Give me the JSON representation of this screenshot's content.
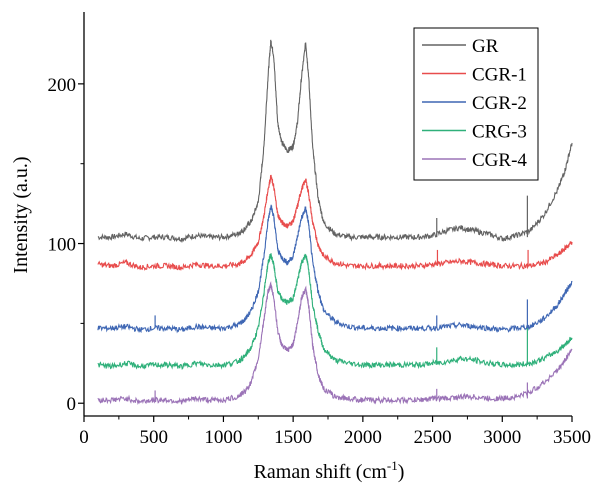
{
  "chart_data": {
    "type": "line",
    "xlabel": "Raman shift (cm",
    "xlabel_sup": "-1",
    "xlabel_suffix": ")",
    "ylabel": "Intensity (a.u.)",
    "xlim": [
      0,
      3500
    ],
    "ylim": [
      -8,
      245
    ],
    "x_ticks": [
      0,
      500,
      1000,
      1500,
      2000,
      2500,
      3000,
      3500
    ],
    "y_ticks": [
      0,
      100,
      200
    ],
    "grid": false,
    "legend_position": "top-right",
    "series": [
      {
        "name": "GR",
        "color": "#636363",
        "points": [
          [
            100,
            104
          ],
          [
            200,
            104
          ],
          [
            300,
            106
          ],
          [
            400,
            103
          ],
          [
            500,
            104
          ],
          [
            600,
            104
          ],
          [
            700,
            103
          ],
          [
            800,
            105
          ],
          [
            900,
            104
          ],
          [
            1000,
            104
          ],
          [
            1100,
            106
          ],
          [
            1150,
            109
          ],
          [
            1200,
            114
          ],
          [
            1250,
            126
          ],
          [
            1290,
            160
          ],
          [
            1320,
            205
          ],
          [
            1340,
            227
          ],
          [
            1360,
            218
          ],
          [
            1390,
            175
          ],
          [
            1420,
            163
          ],
          [
            1460,
            158
          ],
          [
            1500,
            161
          ],
          [
            1530,
            175
          ],
          [
            1560,
            204
          ],
          [
            1590,
            226
          ],
          [
            1610,
            206
          ],
          [
            1640,
            160
          ],
          [
            1680,
            128
          ],
          [
            1720,
            113
          ],
          [
            1800,
            106
          ],
          [
            1900,
            104
          ],
          [
            2000,
            104
          ],
          [
            2100,
            104
          ],
          [
            2200,
            104
          ],
          [
            2300,
            104
          ],
          [
            2400,
            104
          ],
          [
            2500,
            105
          ],
          [
            2600,
            108
          ],
          [
            2700,
            110
          ],
          [
            2800,
            108
          ],
          [
            2900,
            106
          ],
          [
            3000,
            103
          ],
          [
            3100,
            105
          ],
          [
            3200,
            108
          ],
          [
            3300,
            118
          ],
          [
            3400,
            134
          ],
          [
            3450,
            146
          ],
          [
            3500,
            163
          ]
        ]
      },
      {
        "name": "CGR-1",
        "color": "#e84c4c",
        "points": [
          [
            100,
            87
          ],
          [
            200,
            86
          ],
          [
            300,
            88
          ],
          [
            400,
            85
          ],
          [
            500,
            86
          ],
          [
            600,
            86
          ],
          [
            700,
            85
          ],
          [
            800,
            87
          ],
          [
            900,
            86
          ],
          [
            1000,
            86
          ],
          [
            1100,
            87
          ],
          [
            1150,
            89
          ],
          [
            1200,
            93
          ],
          [
            1250,
            101
          ],
          [
            1290,
            117
          ],
          [
            1320,
            134
          ],
          [
            1340,
            142
          ],
          [
            1360,
            136
          ],
          [
            1390,
            118
          ],
          [
            1420,
            113
          ],
          [
            1460,
            111
          ],
          [
            1500,
            114
          ],
          [
            1530,
            123
          ],
          [
            1560,
            134
          ],
          [
            1590,
            140
          ],
          [
            1610,
            132
          ],
          [
            1640,
            113
          ],
          [
            1680,
            99
          ],
          [
            1720,
            92
          ],
          [
            1800,
            88
          ],
          [
            1900,
            86
          ],
          [
            2000,
            86
          ],
          [
            2100,
            86
          ],
          [
            2200,
            86
          ],
          [
            2300,
            86
          ],
          [
            2400,
            86
          ],
          [
            2500,
            87
          ],
          [
            2600,
            88
          ],
          [
            2700,
            89
          ],
          [
            2800,
            88
          ],
          [
            2900,
            87
          ],
          [
            3000,
            86
          ],
          [
            3100,
            86
          ],
          [
            3200,
            86
          ],
          [
            3300,
            88
          ],
          [
            3400,
            93
          ],
          [
            3450,
            97
          ],
          [
            3500,
            101
          ]
        ]
      },
      {
        "name": "CGR-2",
        "color": "#3f67b4",
        "points": [
          [
            100,
            47
          ],
          [
            200,
            47
          ],
          [
            300,
            48
          ],
          [
            400,
            46
          ],
          [
            500,
            47
          ],
          [
            600,
            47
          ],
          [
            700,
            46
          ],
          [
            800,
            48
          ],
          [
            900,
            47
          ],
          [
            1000,
            47
          ],
          [
            1100,
            49
          ],
          [
            1150,
            52
          ],
          [
            1200,
            58
          ],
          [
            1250,
            70
          ],
          [
            1290,
            92
          ],
          [
            1320,
            114
          ],
          [
            1340,
            124
          ],
          [
            1360,
            117
          ],
          [
            1390,
            96
          ],
          [
            1420,
            91
          ],
          [
            1460,
            88
          ],
          [
            1500,
            92
          ],
          [
            1530,
            104
          ],
          [
            1560,
            116
          ],
          [
            1590,
            122
          ],
          [
            1610,
            113
          ],
          [
            1640,
            88
          ],
          [
            1680,
            70
          ],
          [
            1720,
            58
          ],
          [
            1800,
            51
          ],
          [
            1900,
            48
          ],
          [
            2000,
            47
          ],
          [
            2100,
            47
          ],
          [
            2200,
            47
          ],
          [
            2300,
            47
          ],
          [
            2400,
            47
          ],
          [
            2500,
            47
          ],
          [
            2600,
            48
          ],
          [
            2700,
            49
          ],
          [
            2800,
            48
          ],
          [
            2900,
            47
          ],
          [
            3000,
            46
          ],
          [
            3100,
            47
          ],
          [
            3200,
            48
          ],
          [
            3300,
            53
          ],
          [
            3400,
            62
          ],
          [
            3450,
            69
          ],
          [
            3500,
            76
          ]
        ]
      },
      {
        "name": "CRG-3",
        "color": "#2fb07a",
        "points": [
          [
            100,
            24
          ],
          [
            200,
            23
          ],
          [
            300,
            25
          ],
          [
            400,
            23
          ],
          [
            500,
            24
          ],
          [
            600,
            24
          ],
          [
            700,
            23
          ],
          [
            800,
            25
          ],
          [
            900,
            24
          ],
          [
            1000,
            24
          ],
          [
            1100,
            26
          ],
          [
            1150,
            29
          ],
          [
            1200,
            35
          ],
          [
            1250,
            47
          ],
          [
            1290,
            69
          ],
          [
            1320,
            88
          ],
          [
            1340,
            93
          ],
          [
            1360,
            87
          ],
          [
            1390,
            70
          ],
          [
            1420,
            65
          ],
          [
            1460,
            63
          ],
          [
            1500,
            66
          ],
          [
            1530,
            76
          ],
          [
            1560,
            88
          ],
          [
            1590,
            93
          ],
          [
            1610,
            85
          ],
          [
            1640,
            62
          ],
          [
            1680,
            45
          ],
          [
            1720,
            34
          ],
          [
            1800,
            27
          ],
          [
            1900,
            25
          ],
          [
            2000,
            24
          ],
          [
            2100,
            24
          ],
          [
            2200,
            24
          ],
          [
            2300,
            24
          ],
          [
            2400,
            24
          ],
          [
            2500,
            25
          ],
          [
            2600,
            26
          ],
          [
            2700,
            28
          ],
          [
            2800,
            27
          ],
          [
            2900,
            25
          ],
          [
            3000,
            24
          ],
          [
            3100,
            24
          ],
          [
            3200,
            25
          ],
          [
            3300,
            28
          ],
          [
            3400,
            33
          ],
          [
            3450,
            37
          ],
          [
            3500,
            41
          ]
        ]
      },
      {
        "name": "CGR-4",
        "color": "#9b73b7",
        "points": [
          [
            100,
            2
          ],
          [
            200,
            2
          ],
          [
            300,
            3
          ],
          [
            400,
            1
          ],
          [
            500,
            2
          ],
          [
            600,
            2
          ],
          [
            700,
            1
          ],
          [
            800,
            3
          ],
          [
            900,
            2
          ],
          [
            1000,
            2
          ],
          [
            1100,
            4
          ],
          [
            1150,
            7
          ],
          [
            1200,
            13
          ],
          [
            1250,
            28
          ],
          [
            1290,
            52
          ],
          [
            1320,
            70
          ],
          [
            1340,
            74
          ],
          [
            1360,
            67
          ],
          [
            1390,
            45
          ],
          [
            1420,
            36
          ],
          [
            1460,
            33
          ],
          [
            1500,
            37
          ],
          [
            1530,
            50
          ],
          [
            1560,
            66
          ],
          [
            1590,
            72
          ],
          [
            1610,
            62
          ],
          [
            1640,
            36
          ],
          [
            1680,
            18
          ],
          [
            1720,
            9
          ],
          [
            1800,
            4
          ],
          [
            1900,
            3
          ],
          [
            2000,
            2
          ],
          [
            2100,
            2
          ],
          [
            2200,
            2
          ],
          [
            2300,
            2
          ],
          [
            2400,
            2
          ],
          [
            2500,
            3
          ],
          [
            2600,
            3
          ],
          [
            2700,
            4
          ],
          [
            2800,
            4
          ],
          [
            2900,
            3
          ],
          [
            3000,
            3
          ],
          [
            3100,
            4
          ],
          [
            3200,
            7
          ],
          [
            3300,
            13
          ],
          [
            3400,
            21
          ],
          [
            3450,
            27
          ],
          [
            3500,
            34
          ]
        ]
      }
    ],
    "spikes": [
      {
        "series": "GR",
        "x": 2530,
        "y_from": 104,
        "y_to": 116
      },
      {
        "series": "GR",
        "x": 3180,
        "y_from": 104,
        "y_to": 130
      },
      {
        "series": "CGR-1",
        "x": 2535,
        "y_from": 86,
        "y_to": 96
      },
      {
        "series": "CGR-1",
        "x": 3185,
        "y_from": 86,
        "y_to": 96
      },
      {
        "series": "CGR-2",
        "x": 510,
        "y_from": 47,
        "y_to": 55
      },
      {
        "series": "CGR-2",
        "x": 2530,
        "y_from": 47,
        "y_to": 55
      },
      {
        "series": "CGR-2",
        "x": 3180,
        "y_from": 47,
        "y_to": 65
      },
      {
        "series": "CRG-3",
        "x": 2530,
        "y_from": 24,
        "y_to": 35
      },
      {
        "series": "CRG-3",
        "x": 3180,
        "y_from": 24,
        "y_to": 47
      },
      {
        "series": "CGR-4",
        "x": 510,
        "y_from": 2,
        "y_to": 8
      },
      {
        "series": "CGR-4",
        "x": 2530,
        "y_from": 2,
        "y_to": 9
      },
      {
        "series": "CGR-4",
        "x": 3180,
        "y_from": 3,
        "y_to": 13
      }
    ]
  }
}
